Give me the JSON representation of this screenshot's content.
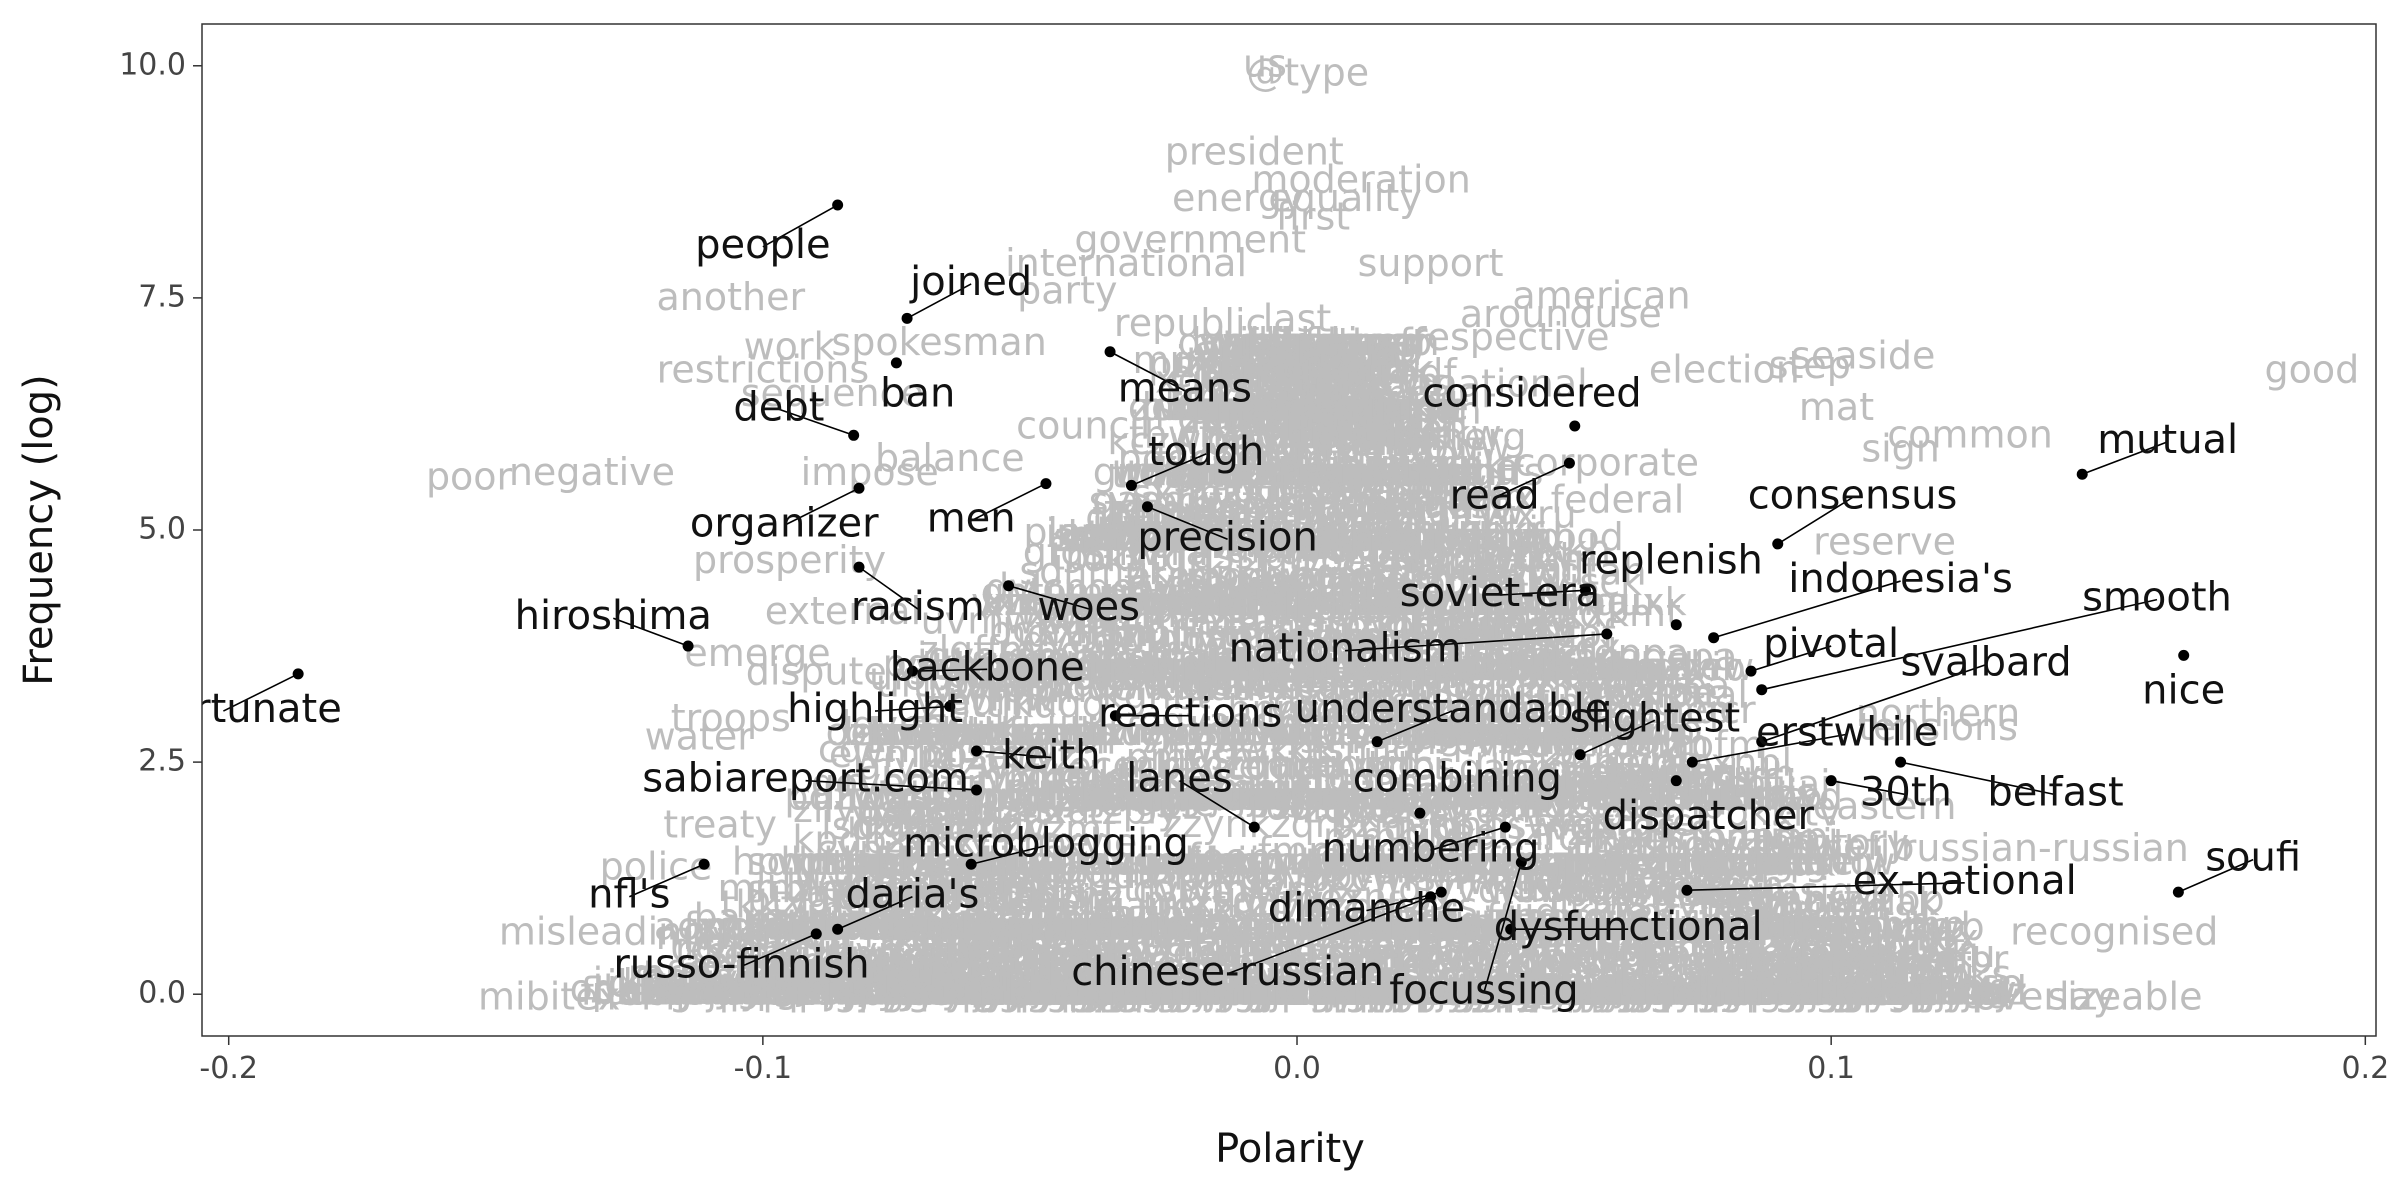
{
  "chart_data": {
    "type": "scatter",
    "title": "",
    "xlabel": "Polarity",
    "ylabel": "Frequency (log)",
    "xlim": [
      -0.205,
      0.202
    ],
    "ylim": [
      -0.45,
      10.45
    ],
    "x_ticks": [
      -0.2,
      -0.1,
      0.0,
      0.1,
      0.2
    ],
    "x_tick_labels": [
      "-0.2",
      "-0.1",
      "0.0",
      "0.1",
      "0.2"
    ],
    "y_ticks": [
      0,
      2.5,
      5,
      7.5,
      10
    ],
    "y_tick_labels": [
      "0.0",
      "2.5",
      "5.0",
      "7.5",
      "10.0"
    ],
    "grid": false,
    "legend": "none",
    "colors": {
      "background_words": "#bdbdbd",
      "highlight_words": "#111111",
      "points": "#000000",
      "panel_border": "#333333"
    },
    "highlighted": [
      {
        "word": "people",
        "x": -0.086,
        "y": 8.5,
        "lx": -0.1,
        "ly": 8.05
      },
      {
        "word": "joined",
        "x": -0.073,
        "y": 7.28,
        "lx": -0.061,
        "ly": 7.65
      },
      {
        "word": "ban",
        "x": -0.075,
        "y": 6.8,
        "lx": -0.071,
        "ly": 6.45
      },
      {
        "word": "debt",
        "x": -0.083,
        "y": 6.02,
        "lx": -0.097,
        "ly": 6.3
      },
      {
        "word": "means",
        "x": -0.035,
        "y": 6.92,
        "lx": -0.021,
        "ly": 6.5
      },
      {
        "word": "considered",
        "x": 0.052,
        "y": 6.12,
        "lx": 0.044,
        "ly": 6.45
      },
      {
        "word": "mutual",
        "x": 0.147,
        "y": 5.6,
        "lx": 0.163,
        "ly": 5.95
      },
      {
        "word": "tough",
        "x": -0.031,
        "y": 5.48,
        "lx": -0.017,
        "ly": 5.82
      },
      {
        "word": "read",
        "x": 0.051,
        "y": 5.72,
        "lx": 0.037,
        "ly": 5.35
      },
      {
        "word": "organizer",
        "x": -0.082,
        "y": 5.45,
        "lx": -0.096,
        "ly": 5.05
      },
      {
        "word": "men",
        "x": -0.047,
        "y": 5.5,
        "lx": -0.061,
        "ly": 5.1
      },
      {
        "word": "precision",
        "x": -0.028,
        "y": 5.25,
        "lx": -0.013,
        "ly": 4.9
      },
      {
        "word": "consensus",
        "x": 0.09,
        "y": 4.85,
        "lx": 0.104,
        "ly": 5.35
      },
      {
        "word": "replenish",
        "x": 0.071,
        "y": 3.98,
        "lx": 0.07,
        "ly": 4.65
      },
      {
        "word": "indonesia's",
        "x": 0.078,
        "y": 3.84,
        "lx": 0.113,
        "ly": 4.45
      },
      {
        "word": "soviet-era",
        "x": 0.054,
        "y": 4.35,
        "lx": 0.038,
        "ly": 4.3
      },
      {
        "word": "racism",
        "x": -0.082,
        "y": 4.6,
        "lx": -0.071,
        "ly": 4.15
      },
      {
        "word": "woes",
        "x": -0.054,
        "y": 4.4,
        "lx": -0.039,
        "ly": 4.15
      },
      {
        "word": "hiroshima",
        "x": -0.114,
        "y": 3.75,
        "lx": -0.128,
        "ly": 4.05
      },
      {
        "word": "smooth",
        "x": 0.087,
        "y": 3.28,
        "lx": 0.161,
        "ly": 4.25
      },
      {
        "word": "nationalism",
        "x": 0.058,
        "y": 3.88,
        "lx": 0.009,
        "ly": 3.7
      },
      {
        "word": "pivotal",
        "x": 0.085,
        "y": 3.48,
        "lx": 0.1,
        "ly": 3.75
      },
      {
        "word": "nice",
        "x": 0.166,
        "y": 3.65,
        "lx": 0.166,
        "ly": 3.25
      },
      {
        "word": "backbone",
        "x": -0.072,
        "y": 3.48,
        "lx": -0.058,
        "ly": 3.5
      },
      {
        "word": "svalbard",
        "x": 0.087,
        "y": 2.72,
        "lx": 0.129,
        "ly": 3.55
      },
      {
        "word": "unfortunate",
        "x": -0.187,
        "y": 3.45,
        "lx": -0.201,
        "ly": 3.05
      },
      {
        "word": "understandable",
        "x": 0.015,
        "y": 2.72,
        "lx": 0.029,
        "ly": 3.05
      },
      {
        "word": "highlight",
        "x": -0.065,
        "y": 3.1,
        "lx": -0.079,
        "ly": 3.05
      },
      {
        "word": "reactions",
        "x": -0.034,
        "y": 3.0,
        "lx": -0.02,
        "ly": 3.0
      },
      {
        "word": "slightest",
        "x": 0.053,
        "y": 2.58,
        "lx": 0.067,
        "ly": 2.95
      },
      {
        "word": "erstwhile",
        "x": 0.074,
        "y": 2.5,
        "lx": 0.103,
        "ly": 2.8
      },
      {
        "word": "keith",
        "x": -0.06,
        "y": 2.62,
        "lx": -0.046,
        "ly": 2.55
      },
      {
        "word": "lanes",
        "x": -0.008,
        "y": 1.8,
        "lx": -0.022,
        "ly": 2.3
      },
      {
        "word": "combining",
        "x": 0.023,
        "y": 1.95,
        "lx": 0.03,
        "ly": 2.3
      },
      {
        "word": "sabiareport.com",
        "x": -0.06,
        "y": 2.2,
        "lx": -0.092,
        "ly": 2.3
      },
      {
        "word": "belfast",
        "x": 0.113,
        "y": 2.5,
        "lx": 0.142,
        "ly": 2.15
      },
      {
        "word": "30th",
        "x": 0.1,
        "y": 2.3,
        "lx": 0.114,
        "ly": 2.15
      },
      {
        "word": "dispatcher",
        "x": 0.071,
        "y": 2.3,
        "lx": 0.077,
        "ly": 1.9
      },
      {
        "word": "microblogging",
        "x": -0.061,
        "y": 1.4,
        "lx": -0.047,
        "ly": 1.6
      },
      {
        "word": "numbering",
        "x": 0.039,
        "y": 1.8,
        "lx": 0.025,
        "ly": 1.55
      },
      {
        "word": "soufi",
        "x": 0.165,
        "y": 1.1,
        "lx": 0.179,
        "ly": 1.45
      },
      {
        "word": "ex-national",
        "x": 0.073,
        "y": 1.12,
        "lx": 0.125,
        "ly": 1.2
      },
      {
        "word": "nfl's",
        "x": -0.111,
        "y": 1.4,
        "lx": -0.125,
        "ly": 1.05
      },
      {
        "word": "daria's",
        "x": -0.086,
        "y": 0.7,
        "lx": -0.072,
        "ly": 1.05
      },
      {
        "word": "dimanche",
        "x": 0.027,
        "y": 1.1,
        "lx": 0.013,
        "ly": 0.9
      },
      {
        "word": "dysfunctional",
        "x": 0.04,
        "y": 0.7,
        "lx": 0.062,
        "ly": 0.7
      },
      {
        "word": "russo-finnish",
        "x": -0.09,
        "y": 0.65,
        "lx": -0.104,
        "ly": 0.3
      },
      {
        "word": "chinese-russian",
        "x": 0.025,
        "y": 1.05,
        "lx": -0.013,
        "ly": 0.22
      },
      {
        "word": "focussing",
        "x": 0.042,
        "y": 1.42,
        "lx": 0.035,
        "ly": 0.02
      }
    ],
    "background_words": [
      {
        "word": "@type",
        "x": 0.002,
        "y": 9.9
      },
      {
        "word": "us",
        "x": -0.006,
        "y": 10.0
      },
      {
        "word": "president",
        "x": -0.008,
        "y": 9.05
      },
      {
        "word": "moderation",
        "x": 0.012,
        "y": 8.75
      },
      {
        "word": "energy",
        "x": -0.011,
        "y": 8.55
      },
      {
        "word": "equality",
        "x": 0.009,
        "y": 8.55
      },
      {
        "word": "government",
        "x": -0.02,
        "y": 8.1
      },
      {
        "word": "first",
        "x": 0.003,
        "y": 8.35
      },
      {
        "word": "international",
        "x": -0.032,
        "y": 7.85
      },
      {
        "word": "support",
        "x": 0.025,
        "y": 7.85
      },
      {
        "word": "american",
        "x": 0.057,
        "y": 7.5
      },
      {
        "word": "another",
        "x": -0.106,
        "y": 7.48
      },
      {
        "word": "party",
        "x": -0.043,
        "y": 7.55
      },
      {
        "word": "around",
        "x": 0.043,
        "y": 7.3
      },
      {
        "word": "use",
        "x": 0.062,
        "y": 7.3
      },
      {
        "word": "last",
        "x": 0.0,
        "y": 7.25
      },
      {
        "word": "work",
        "x": -0.095,
        "y": 6.95
      },
      {
        "word": "spokesman",
        "x": -0.067,
        "y": 7.0
      },
      {
        "word": "respective",
        "x": 0.04,
        "y": 7.05
      },
      {
        "word": "seaside",
        "x": 0.106,
        "y": 6.85
      },
      {
        "word": "good",
        "x": 0.19,
        "y": 6.7
      },
      {
        "word": "restrictions",
        "x": -0.1,
        "y": 6.7
      },
      {
        "word": "election",
        "x": 0.08,
        "y": 6.7
      },
      {
        "word": "step",
        "x": 0.096,
        "y": 6.75
      },
      {
        "word": "sequence",
        "x": -0.087,
        "y": 6.45
      },
      {
        "word": "mat",
        "x": 0.101,
        "y": 6.3
      },
      {
        "word": "common",
        "x": 0.126,
        "y": 6.0
      },
      {
        "word": "sign",
        "x": 0.113,
        "y": 5.85
      },
      {
        "word": "poor",
        "x": -0.155,
        "y": 5.55
      },
      {
        "word": "negative",
        "x": -0.132,
        "y": 5.6
      },
      {
        "word": "impose",
        "x": -0.08,
        "y": 5.6
      },
      {
        "word": "balance",
        "x": -0.065,
        "y": 5.75
      },
      {
        "word": "corporate",
        "x": 0.058,
        "y": 5.7
      },
      {
        "word": "reserve",
        "x": 0.11,
        "y": 4.85
      },
      {
        "word": "prosperity",
        "x": -0.095,
        "y": 4.65
      },
      {
        "word": "external",
        "x": -0.085,
        "y": 4.1
      },
      {
        "word": "emerge",
        "x": -0.101,
        "y": 3.65
      },
      {
        "word": "dispute",
        "x": -0.09,
        "y": 3.45
      },
      {
        "word": "troops",
        "x": -0.106,
        "y": 2.95
      },
      {
        "word": "water",
        "x": -0.112,
        "y": 2.75
      },
      {
        "word": "governor",
        "x": -0.075,
        "y": 2.25
      },
      {
        "word": "treaty",
        "x": -0.108,
        "y": 1.8
      },
      {
        "word": "police",
        "x": -0.12,
        "y": 1.35
      },
      {
        "word": "misleading",
        "x": -0.13,
        "y": 0.65
      },
      {
        "word": "mibitex",
        "x": -0.14,
        "y": -0.05
      },
      {
        "word": "national",
        "x": 0.04,
        "y": 6.55
      },
      {
        "word": "market",
        "x": 0.0,
        "y": 6.2
      },
      {
        "word": "republic",
        "x": -0.02,
        "y": 7.2
      },
      {
        "word": "history",
        "x": 0.01,
        "y": 6.0
      },
      {
        "word": "council",
        "x": -0.04,
        "y": 6.1
      },
      {
        "word": "process",
        "x": 0.02,
        "y": 5.4
      },
      {
        "word": "federal",
        "x": 0.06,
        "y": 5.3
      },
      {
        "word": "russian",
        "x": -0.01,
        "y": 4.7
      },
      {
        "word": "capital",
        "x": 0.03,
        "y": 4.2
      },
      {
        "word": "official",
        "x": -0.02,
        "y": 3.6
      },
      {
        "word": "regional",
        "x": 0.07,
        "y": 3.2
      },
      {
        "word": "minister",
        "x": -0.04,
        "y": 2.2
      },
      {
        "word": "northern",
        "x": 0.12,
        "y": 3.0
      },
      {
        "word": "eastern",
        "x": 0.11,
        "y": 2.0
      },
      {
        "word": "territory",
        "x": 0.1,
        "y": 1.6
      },
      {
        "word": "recognised",
        "x": 0.153,
        "y": 0.65
      },
      {
        "word": "overlay",
        "x": 0.14,
        "y": -0.05
      },
      {
        "word": "sizeable",
        "x": 0.155,
        "y": -0.05
      },
      {
        "word": "russian-russian",
        "x": 0.14,
        "y": 1.55
      },
      {
        "word": "tensions",
        "x": 0.12,
        "y": 2.85
      }
    ]
  }
}
